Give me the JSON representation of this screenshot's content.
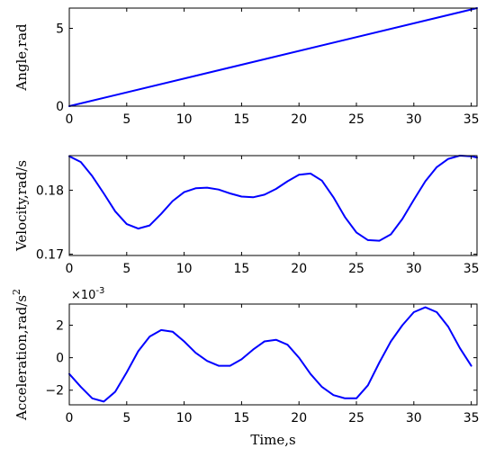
{
  "colors": {
    "series": "#0000ff",
    "axes": "#000000",
    "background": "#ffffff"
  },
  "chart_data": [
    {
      "type": "line",
      "xlabel": "",
      "ylabel": "Angle,rad",
      "xlim": [
        0,
        35.5
      ],
      "ylim": [
        0,
        6.3
      ],
      "xticks": [
        0,
        5,
        10,
        15,
        20,
        25,
        30,
        35
      ],
      "yticks": [
        0,
        5
      ],
      "grid": false,
      "series": [
        {
          "x": [
            0,
            35.5
          ],
          "y": [
            0,
            6.3
          ]
        }
      ]
    },
    {
      "type": "line",
      "xlabel": "",
      "ylabel": "Velocity,rad/s",
      "xlim": [
        0,
        35.5
      ],
      "ylim": [
        0.1698,
        0.1854
      ],
      "xticks": [
        0,
        5,
        10,
        15,
        20,
        25,
        30,
        35
      ],
      "yticks": [
        0.17,
        0.18
      ],
      "grid": false,
      "series": [
        {
          "x": [
            0,
            1,
            2,
            3,
            4,
            5,
            6,
            7,
            8,
            9,
            10,
            11,
            12,
            13,
            14,
            15,
            16,
            17,
            18,
            19,
            20,
            21,
            22,
            23,
            24,
            25,
            26,
            27,
            28,
            29,
            30,
            31,
            32,
            33,
            34,
            35,
            35.5
          ],
          "y": [
            0.1853,
            0.1844,
            0.1822,
            0.1795,
            0.1767,
            0.1747,
            0.174,
            0.1745,
            0.1763,
            0.1783,
            0.1797,
            0.1803,
            0.1804,
            0.1801,
            0.1795,
            0.179,
            0.1789,
            0.1793,
            0.1802,
            0.1814,
            0.1824,
            0.1826,
            0.1815,
            0.1789,
            0.1758,
            0.1734,
            0.1722,
            0.1721,
            0.1731,
            0.1755,
            0.1785,
            0.1814,
            0.1836,
            0.1849,
            0.1854,
            0.1853,
            0.1851
          ]
        }
      ]
    },
    {
      "type": "line",
      "xlabel": "Time,s",
      "ylabel": "Acceleration,rad/s",
      "ylabel_superscript": "2",
      "exponent_label": "×10",
      "exponent_superscript": "-3",
      "xlim": [
        0,
        35.5
      ],
      "ylim": [
        -2.9,
        3.3
      ],
      "xticks": [
        0,
        5,
        10,
        15,
        20,
        25,
        30,
        35
      ],
      "yticks": [
        -2,
        0,
        2
      ],
      "grid": false,
      "series": [
        {
          "x": [
            0,
            1,
            2,
            3,
            4,
            5,
            6,
            7,
            8,
            9,
            10,
            11,
            12,
            13,
            14,
            15,
            16,
            17,
            18,
            19,
            20,
            21,
            22,
            23,
            24,
            25,
            26,
            27,
            28,
            29,
            30,
            31,
            32,
            33,
            34,
            35
          ],
          "y": [
            -1.0,
            -1.8,
            -2.5,
            -2.7,
            -2.1,
            -0.9,
            0.4,
            1.3,
            1.7,
            1.6,
            1.0,
            0.3,
            -0.2,
            -0.5,
            -0.5,
            -0.1,
            0.5,
            1.0,
            1.1,
            0.8,
            0.0,
            -1.0,
            -1.8,
            -2.3,
            -2.5,
            -2.5,
            -1.7,
            -0.3,
            1.0,
            2.0,
            2.8,
            3.1,
            2.8,
            1.9,
            0.6,
            -0.5
          ]
        }
      ]
    }
  ]
}
